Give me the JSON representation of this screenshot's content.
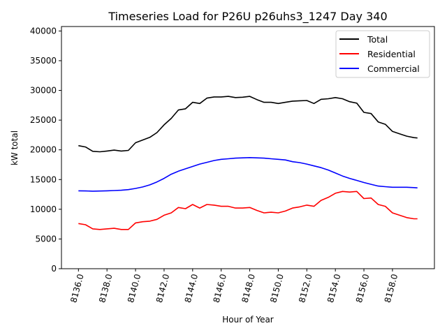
{
  "chart_data": {
    "type": "line",
    "title": "Timeseries Load for P26U p26uhs3_1247  Day 340",
    "xlabel": "Hour of Year",
    "ylabel": "kW total",
    "xlim": [
      8134.81,
      8160.94
    ],
    "ylim": [
      0,
      40750
    ],
    "xticks": [
      8136,
      8138,
      8140,
      8142,
      8144,
      8146,
      8148,
      8150,
      8152,
      8154,
      8156,
      8158
    ],
    "xtick_labels": [
      "8136.0",
      "8138.0",
      "8140.0",
      "8142.0",
      "8144.0",
      "8146.0",
      "8148.0",
      "8150.0",
      "8152.0",
      "8154.0",
      "8156.0",
      "8158.0"
    ],
    "yticks": [
      0,
      5000,
      10000,
      15000,
      20000,
      25000,
      30000,
      35000,
      40000
    ],
    "ytick_labels": [
      "0",
      "5000",
      "10000",
      "15000",
      "20000",
      "25000",
      "30000",
      "35000",
      "40000"
    ],
    "legend_position": "top-right",
    "grid": false,
    "x": [
      8136,
      8136.5,
      8137,
      8137.5,
      8138,
      8138.5,
      8139,
      8139.5,
      8140,
      8140.5,
      8141,
      8141.5,
      8142,
      8142.5,
      8143,
      8143.5,
      8144,
      8144.5,
      8145,
      8145.5,
      8146,
      8146.5,
      8147,
      8147.5,
      8148,
      8148.5,
      8149,
      8149.5,
      8150,
      8150.5,
      8151,
      8151.5,
      8152,
      8152.5,
      8153,
      8153.5,
      8154,
      8154.5,
      8155,
      8155.5,
      8156,
      8156.5,
      8157,
      8157.5,
      8158,
      8158.5,
      8159,
      8159.5,
      8159.75
    ],
    "series": [
      {
        "name": "Total",
        "color": "#000000",
        "values": [
          20700,
          20480,
          19750,
          19670,
          19800,
          19950,
          19800,
          19900,
          21200,
          21650,
          22100,
          22900,
          24200,
          25300,
          26700,
          26900,
          28000,
          27800,
          28700,
          28900,
          28900,
          29000,
          28800,
          28850,
          29000,
          28450,
          28000,
          28000,
          27800,
          28000,
          28200,
          28250,
          28300,
          27800,
          28500,
          28600,
          28800,
          28600,
          28100,
          27850,
          26300,
          26100,
          24700,
          24300,
          23100,
          22700,
          22300,
          22050,
          22000
        ]
      },
      {
        "name": "Residential",
        "color": "#ff0000",
        "values": [
          7600,
          7400,
          6700,
          6600,
          6700,
          6800,
          6600,
          6600,
          7700,
          7900,
          8000,
          8300,
          9000,
          9400,
          10300,
          10100,
          10800,
          10200,
          10800,
          10700,
          10500,
          10500,
          10200,
          10200,
          10300,
          9800,
          9400,
          9500,
          9400,
          9700,
          10200,
          10400,
          10700,
          10500,
          11500,
          12000,
          12700,
          13000,
          12900,
          13000,
          11800,
          11900,
          10800,
          10500,
          9400,
          9000,
          8600,
          8400,
          8400
        ]
      },
      {
        "name": "Commercial",
        "color": "#0000ff",
        "values": [
          13100,
          13080,
          13050,
          13070,
          13100,
          13150,
          13200,
          13300,
          13500,
          13750,
          14100,
          14600,
          15200,
          15900,
          16400,
          16800,
          17200,
          17600,
          17900,
          18200,
          18400,
          18500,
          18600,
          18650,
          18700,
          18650,
          18600,
          18500,
          18400,
          18300,
          18000,
          17850,
          17600,
          17300,
          17000,
          16600,
          16100,
          15600,
          15200,
          14850,
          14500,
          14200,
          13900,
          13800,
          13700,
          13700,
          13700,
          13650,
          13600
        ]
      }
    ]
  }
}
